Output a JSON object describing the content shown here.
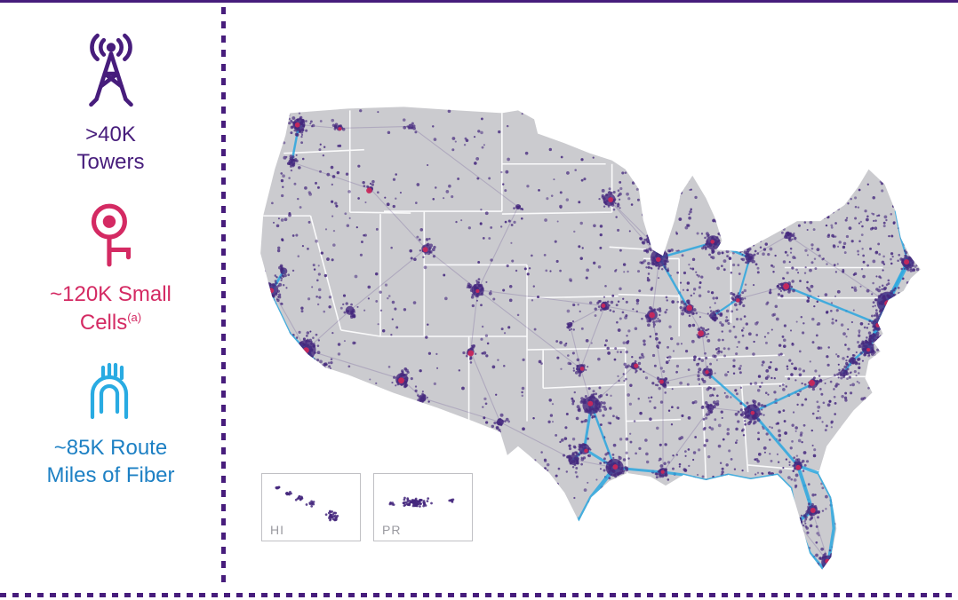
{
  "colors": {
    "purple": "#471D7C",
    "crimson": "#D42A63",
    "blue_icon": "#29ABE2",
    "blue_text": "#1D80C4",
    "map_gray": "#CBCBCF",
    "dot_purple": "#45287E",
    "fiber_blue": "#2EA9E0",
    "small_cell_red": "#C8285B",
    "state_border": "#FFFFFF",
    "inset_border": "#C0C0C4",
    "inset_label": "#9A9AA0"
  },
  "sidebar": {
    "stats": [
      {
        "icon": "cell-tower-icon",
        "line1": ">40K",
        "line2": "Towers"
      },
      {
        "icon": "small-cell-icon",
        "line1": "~120K Small",
        "line2": "Cells",
        "superscript": "(a)"
      },
      {
        "icon": "fiber-icon",
        "line1": "~85K Route",
        "line2": "Miles of Fiber"
      }
    ]
  },
  "map": {
    "insets": [
      {
        "label": "HI"
      },
      {
        "label": "PR"
      }
    ]
  }
}
